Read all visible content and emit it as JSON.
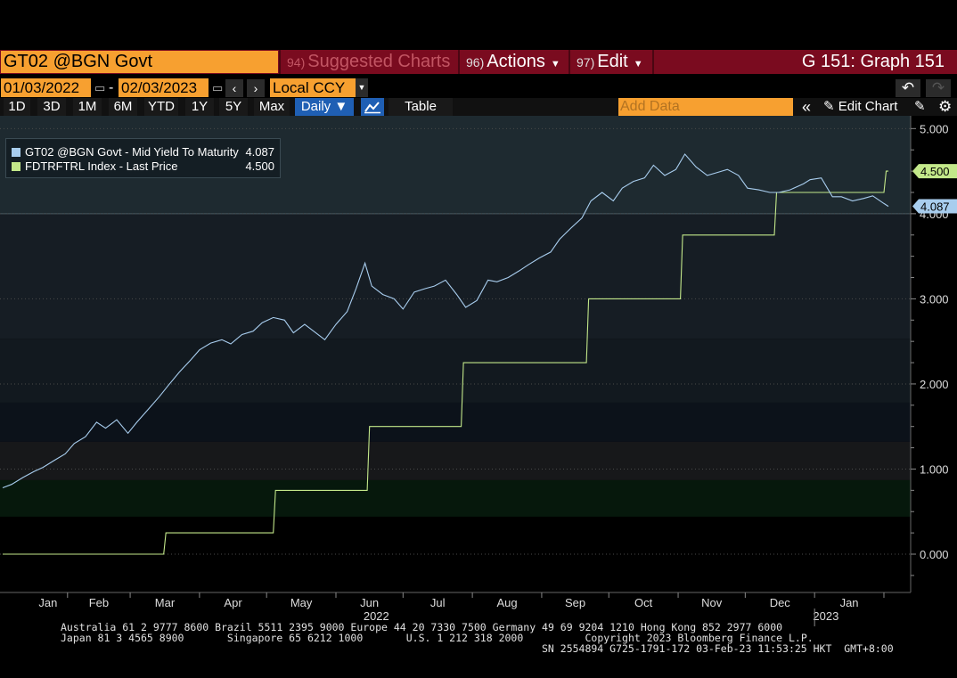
{
  "header": {
    "security": "GT02 @BGN Govt",
    "suggested_num": "94)",
    "suggested_label": "Suggested Charts",
    "actions_num": "96)",
    "actions_label": "Actions",
    "edit_num": "97)",
    "edit_label": "Edit",
    "graph_title": "G 151: Graph 151"
  },
  "range": {
    "start": "01/03/2022",
    "dash": "-",
    "end": "02/03/2023",
    "currency": "Local CCY"
  },
  "toolbar": {
    "periods": [
      "1D",
      "3D",
      "1M",
      "6M",
      "YTD",
      "1Y",
      "5Y",
      "Max"
    ],
    "frequency": "Daily",
    "table_label": "Table",
    "add_data_placeholder": "Add Data",
    "edit_chart": "Edit Chart"
  },
  "legend": [
    {
      "label": "GT02 @BGN Govt - Mid Yield To Maturity",
      "value": "4.087",
      "color": "#a8cdee"
    },
    {
      "label": "FDTRFTRL Index - Last Price",
      "value": "4.500",
      "color": "#c3e88a"
    }
  ],
  "chart_data": {
    "type": "line",
    "x_range": [
      "2022-01-03",
      "2023-02-03"
    ],
    "ylim": [
      -0.45,
      5.15
    ],
    "y_ticks": [
      "5.000",
      "4.000",
      "3.000",
      "2.000",
      "1.000",
      "0.000"
    ],
    "x_months": [
      "Jan",
      "Feb",
      "Mar",
      "Apr",
      "May",
      "Jun",
      "Jul",
      "Aug",
      "Sep",
      "Oct",
      "Nov",
      "Dec",
      "Jan"
    ],
    "x_years": [
      "2022",
      "2023"
    ],
    "series": [
      {
        "name": "GT02 @BGN Govt - Mid Yield To Maturity",
        "color": "#a8cdee",
        "last_label": "4.087",
        "points": [
          [
            "2022-01-03",
            0.78
          ],
          [
            "2022-01-07",
            0.82
          ],
          [
            "2022-01-12",
            0.9
          ],
          [
            "2022-01-17",
            0.97
          ],
          [
            "2022-01-21",
            1.02
          ],
          [
            "2022-01-26",
            1.1
          ],
          [
            "2022-01-31",
            1.18
          ],
          [
            "2022-02-04",
            1.3
          ],
          [
            "2022-02-09",
            1.38
          ],
          [
            "2022-02-14",
            1.55
          ],
          [
            "2022-02-18",
            1.48
          ],
          [
            "2022-02-23",
            1.58
          ],
          [
            "2022-02-28",
            1.42
          ],
          [
            "2022-03-04",
            1.55
          ],
          [
            "2022-03-09",
            1.7
          ],
          [
            "2022-03-14",
            1.85
          ],
          [
            "2022-03-18",
            1.98
          ],
          [
            "2022-03-23",
            2.14
          ],
          [
            "2022-03-28",
            2.28
          ],
          [
            "2022-04-01",
            2.4
          ],
          [
            "2022-04-06",
            2.48
          ],
          [
            "2022-04-11",
            2.52
          ],
          [
            "2022-04-15",
            2.47
          ],
          [
            "2022-04-20",
            2.58
          ],
          [
            "2022-04-25",
            2.62
          ],
          [
            "2022-04-29",
            2.72
          ],
          [
            "2022-05-04",
            2.78
          ],
          [
            "2022-05-09",
            2.75
          ],
          [
            "2022-05-13",
            2.6
          ],
          [
            "2022-05-18",
            2.7
          ],
          [
            "2022-05-23",
            2.6
          ],
          [
            "2022-05-27",
            2.52
          ],
          [
            "2022-06-01",
            2.7
          ],
          [
            "2022-06-06",
            2.85
          ],
          [
            "2022-06-10",
            3.12
          ],
          [
            "2022-06-14",
            3.42
          ],
          [
            "2022-06-17",
            3.15
          ],
          [
            "2022-06-22",
            3.05
          ],
          [
            "2022-06-27",
            3.0
          ],
          [
            "2022-07-01",
            2.88
          ],
          [
            "2022-07-06",
            3.08
          ],
          [
            "2022-07-11",
            3.12
          ],
          [
            "2022-07-15",
            3.15
          ],
          [
            "2022-07-20",
            3.22
          ],
          [
            "2022-07-25",
            3.05
          ],
          [
            "2022-07-29",
            2.9
          ],
          [
            "2022-08-03",
            2.98
          ],
          [
            "2022-08-08",
            3.22
          ],
          [
            "2022-08-12",
            3.2
          ],
          [
            "2022-08-17",
            3.25
          ],
          [
            "2022-08-22",
            3.33
          ],
          [
            "2022-08-26",
            3.4
          ],
          [
            "2022-08-31",
            3.48
          ],
          [
            "2022-09-05",
            3.55
          ],
          [
            "2022-09-09",
            3.7
          ],
          [
            "2022-09-14",
            3.83
          ],
          [
            "2022-09-19",
            3.95
          ],
          [
            "2022-09-23",
            4.15
          ],
          [
            "2022-09-28",
            4.25
          ],
          [
            "2022-10-03",
            4.15
          ],
          [
            "2022-10-07",
            4.3
          ],
          [
            "2022-10-12",
            4.38
          ],
          [
            "2022-10-17",
            4.42
          ],
          [
            "2022-10-21",
            4.57
          ],
          [
            "2022-10-26",
            4.45
          ],
          [
            "2022-10-31",
            4.52
          ],
          [
            "2022-11-04",
            4.7
          ],
          [
            "2022-11-09",
            4.55
          ],
          [
            "2022-11-14",
            4.45
          ],
          [
            "2022-11-18",
            4.48
          ],
          [
            "2022-11-23",
            4.52
          ],
          [
            "2022-11-28",
            4.45
          ],
          [
            "2022-12-02",
            4.3
          ],
          [
            "2022-12-07",
            4.28
          ],
          [
            "2022-12-12",
            4.25
          ],
          [
            "2022-12-16",
            4.25
          ],
          [
            "2022-12-21",
            4.28
          ],
          [
            "2022-12-27",
            4.35
          ],
          [
            "2022-12-30",
            4.4
          ],
          [
            "2023-01-04",
            4.42
          ],
          [
            "2023-01-09",
            4.2
          ],
          [
            "2023-01-13",
            4.2
          ],
          [
            "2023-01-18",
            4.15
          ],
          [
            "2023-01-23",
            4.18
          ],
          [
            "2023-01-27",
            4.21
          ],
          [
            "2023-02-01",
            4.12
          ],
          [
            "2023-02-03",
            4.087
          ]
        ]
      },
      {
        "name": "FDTRFTRL Index - Last Price",
        "color": "#c3e88a",
        "last_label": "4.500",
        "points": [
          [
            "2022-01-03",
            0.0
          ],
          [
            "2022-03-16",
            0.0
          ],
          [
            "2022-03-17",
            0.25
          ],
          [
            "2022-05-04",
            0.25
          ],
          [
            "2022-05-05",
            0.75
          ],
          [
            "2022-06-15",
            0.75
          ],
          [
            "2022-06-16",
            1.5
          ],
          [
            "2022-07-27",
            1.5
          ],
          [
            "2022-07-28",
            2.25
          ],
          [
            "2022-09-21",
            2.25
          ],
          [
            "2022-09-22",
            3.0
          ],
          [
            "2022-11-02",
            3.0
          ],
          [
            "2022-11-03",
            3.75
          ],
          [
            "2022-12-14",
            3.75
          ],
          [
            "2022-12-15",
            4.25
          ],
          [
            "2023-02-01",
            4.25
          ],
          [
            "2023-02-02",
            4.5
          ],
          [
            "2023-02-03",
            4.5
          ]
        ]
      }
    ]
  },
  "footer": {
    "line1": "Australia 61 2 9777 8600 Brazil 5511 2395 9000 Europe 44 20 7330 7500 Germany 49 69 9204 1210 Hong Kong 852 2977 6000",
    "line2": "Japan 81 3 4565 8900       Singapore 65 6212 1000       U.S. 1 212 318 2000          Copyright 2023 Bloomberg Finance L.P.",
    "line3": "SN 2554894 G725-1791-172 03-Feb-23 11:53:25 HKT  GMT+8:00"
  }
}
